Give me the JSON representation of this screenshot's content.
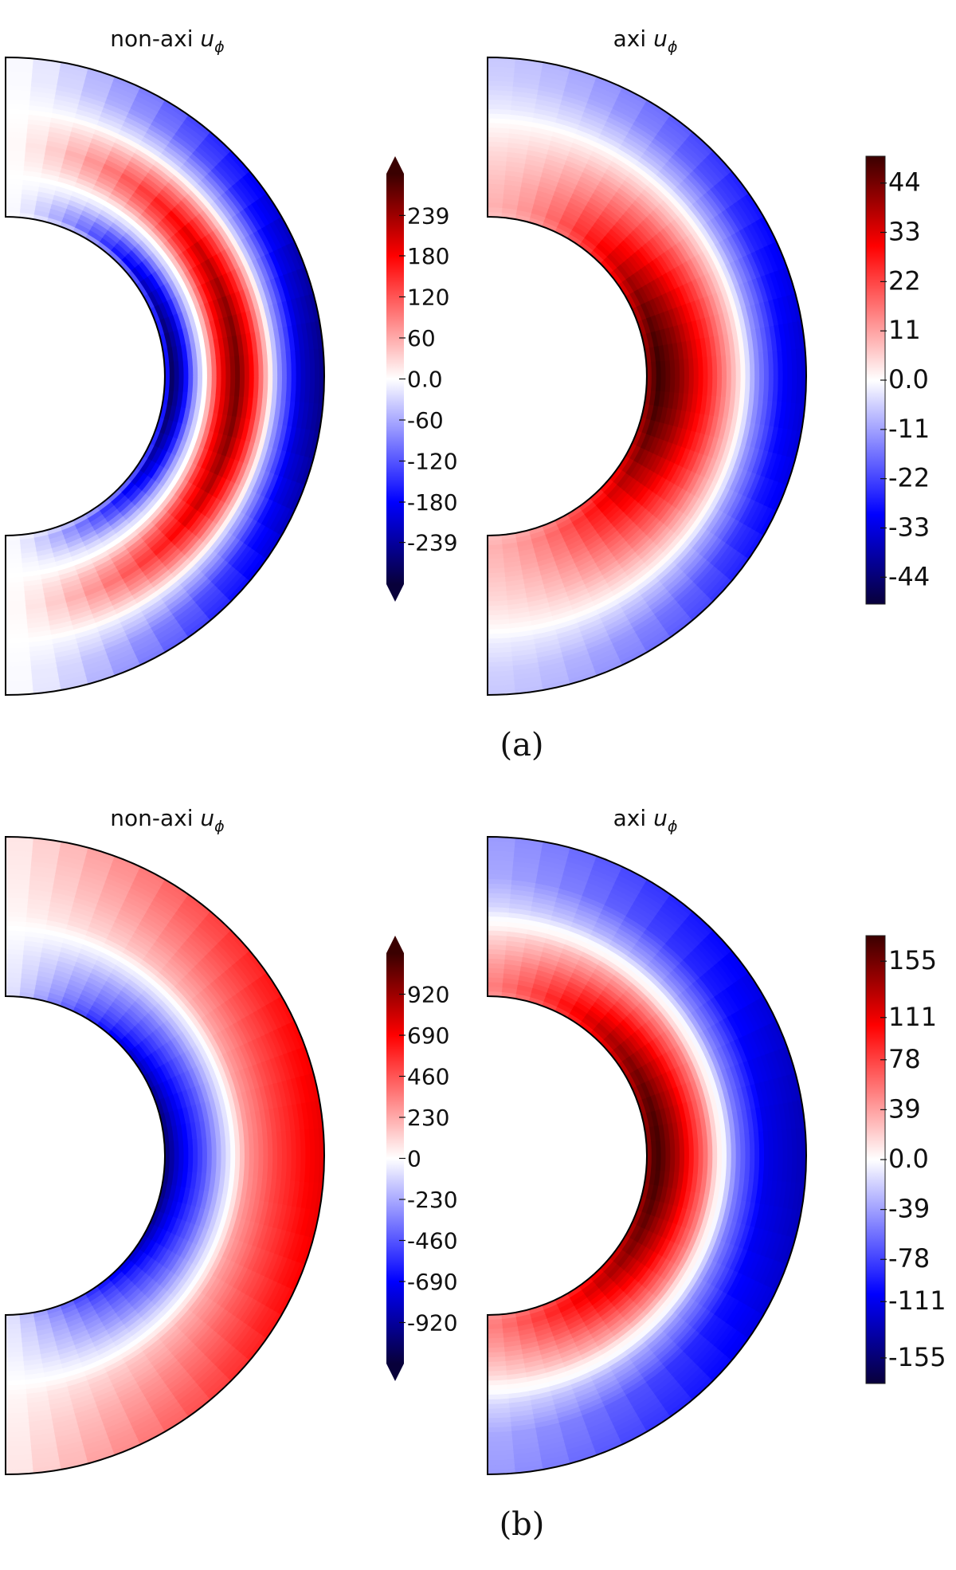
{
  "panels": [
    {
      "caption": "(a)",
      "plots": [
        {
          "title_prefix": "non-axi",
          "title_symbol": "u",
          "title_sub": "ϕ",
          "field": "non-axi u_phi",
          "bands": [
            {
              "r": 0.0,
              "v": -0.2
            },
            {
              "r": 0.03,
              "v": -0.95
            },
            {
              "r": 0.1,
              "v": -0.75
            },
            {
              "r": 0.2,
              "v": -0.2
            },
            {
              "r": 0.25,
              "v": 0.0
            },
            {
              "r": 0.35,
              "v": 0.6
            },
            {
              "r": 0.45,
              "v": 0.9
            },
            {
              "r": 0.56,
              "v": 0.55
            },
            {
              "r": 0.66,
              "v": 0.05
            },
            {
              "r": 0.7,
              "v": -0.2
            },
            {
              "r": 0.85,
              "v": -0.7
            },
            {
              "r": 1.0,
              "v": -0.85
            }
          ],
          "polar_decay": 1.3,
          "colorbar": {
            "extend": true,
            "max": 300,
            "ticks": [
              "239",
              "180",
              "120",
              "60",
              "0.0",
              "-60",
              "-120",
              "-180",
              "-239"
            ],
            "tick_values": [
              239,
              180,
              120,
              60,
              0,
              -60,
              -120,
              -180,
              -239
            ]
          }
        },
        {
          "title_prefix": "axi",
          "title_symbol": "u",
          "title_sub": "ϕ",
          "field": "axi u_phi",
          "bands": [
            {
              "r": 0.0,
              "v": 0.8
            },
            {
              "r": 0.07,
              "v": 1.0
            },
            {
              "r": 0.2,
              "v": 0.85
            },
            {
              "r": 0.4,
              "v": 0.5
            },
            {
              "r": 0.55,
              "v": 0.15
            },
            {
              "r": 0.61,
              "v": 0.0
            },
            {
              "r": 0.68,
              "v": -0.25
            },
            {
              "r": 0.85,
              "v": -0.6
            },
            {
              "r": 1.0,
              "v": -0.7
            }
          ],
          "polar_decay": 1.6,
          "polar_floor": 0.18,
          "colorbar": {
            "extend": false,
            "max": 50,
            "ticks": [
              "44",
              "33",
              "22",
              "11",
              "0.0",
              "-11",
              "-22",
              "-33",
              "-44"
            ],
            "tick_values": [
              44,
              33,
              22,
              11,
              0,
              -11,
              -22,
              -33,
              -44
            ]
          }
        }
      ]
    },
    {
      "caption": "(b)",
      "plots": [
        {
          "title_prefix": "non-axi",
          "title_symbol": "u",
          "title_sub": "ϕ",
          "field": "non-axi u_phi",
          "bands": [
            {
              "r": 0.0,
              "v": -0.9
            },
            {
              "r": 0.08,
              "v": -0.7
            },
            {
              "r": 0.25,
              "v": -0.4
            },
            {
              "r": 0.38,
              "v": -0.1
            },
            {
              "r": 0.43,
              "v": 0.0
            },
            {
              "r": 0.52,
              "v": 0.25
            },
            {
              "r": 0.7,
              "v": 0.45
            },
            {
              "r": 0.9,
              "v": 0.6
            },
            {
              "r": 1.0,
              "v": 0.65
            }
          ],
          "polar_decay": 1.0,
          "polar_floor": 0.05,
          "colorbar": {
            "extend": true,
            "max": 1150,
            "ticks": [
              "920",
              "690",
              "460",
              "230",
              "0",
              "-230",
              "-460",
              "-690",
              "-920"
            ],
            "tick_values": [
              920,
              690,
              460,
              230,
              0,
              -230,
              -460,
              -690,
              -920
            ]
          }
        },
        {
          "title_prefix": "axi",
          "title_symbol": "u",
          "title_sub": "ϕ",
          "field": "axi u_phi",
          "bands": [
            {
              "r": 0.0,
              "v": 0.8
            },
            {
              "r": 0.06,
              "v": 1.0
            },
            {
              "r": 0.2,
              "v": 0.75
            },
            {
              "r": 0.38,
              "v": 0.3
            },
            {
              "r": 0.44,
              "v": 0.05
            },
            {
              "r": 0.48,
              "v": 0.0
            },
            {
              "r": 0.56,
              "v": -0.3
            },
            {
              "r": 0.75,
              "v": -0.65
            },
            {
              "r": 1.0,
              "v": -0.75
            }
          ],
          "polar_decay": 1.2,
          "polar_floor": 0.3,
          "colorbar": {
            "extend": false,
            "max": 175,
            "ticks": [
              "155",
              "111",
              "78",
              "39",
              "0.0",
              "-39",
              "-78",
              "-111",
              "-155"
            ],
            "tick_values": [
              155,
              111,
              78,
              39,
              0,
              -39,
              -78,
              -111,
              -155
            ]
          }
        }
      ]
    }
  ],
  "colors": {
    "negative_extreme": "#08003a",
    "negative": "#0000ff",
    "zero": "#ffffff",
    "positive": "#ff0000",
    "positive_extreme": "#3a0000",
    "outline": "#000000"
  }
}
